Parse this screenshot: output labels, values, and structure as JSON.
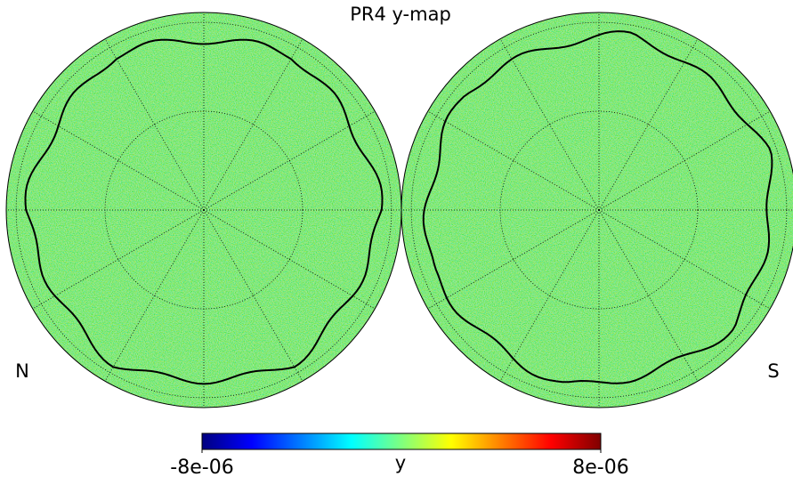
{
  "chart_data": {
    "type": "map",
    "title": "PR4 y-map",
    "panels": [
      {
        "label": "N"
      },
      {
        "label": "S"
      }
    ],
    "colorbar": {
      "label": "y",
      "colormap": "jet",
      "lim": [
        -8e-06,
        8e-06
      ],
      "ticks": [
        {
          "value": -8e-06,
          "label": "-8e-06"
        },
        {
          "value": 8e-06,
          "label": "8e-06"
        }
      ]
    }
  }
}
